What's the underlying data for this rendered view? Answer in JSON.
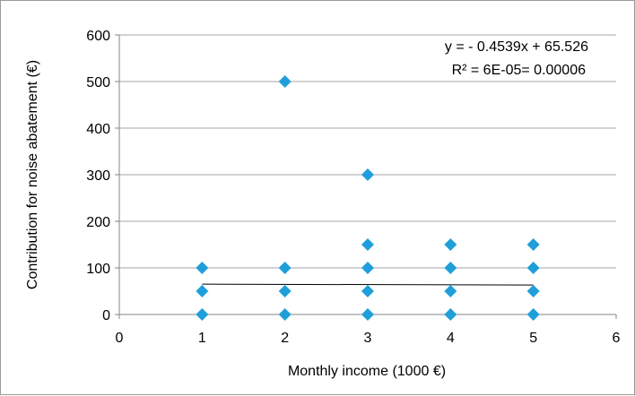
{
  "chart_data": {
    "type": "scatter",
    "title": "",
    "xlabel": "Monthly income (1000 €)",
    "ylabel": "Contribution for noise abatement (€)",
    "xlim": [
      0,
      6
    ],
    "ylim": [
      0,
      600
    ],
    "xticks": [
      "0",
      "1",
      "2",
      "3",
      "4",
      "5",
      "6"
    ],
    "yticks": [
      "0",
      "100",
      "200",
      "300",
      "400",
      "500",
      "600"
    ],
    "grid": {
      "horizontal": true,
      "vertical": false
    },
    "marker_color": "#1f9fd9",
    "trendline_color": "#000000",
    "points": [
      {
        "x": 1,
        "y": 0
      },
      {
        "x": 1,
        "y": 50
      },
      {
        "x": 1,
        "y": 100
      },
      {
        "x": 2,
        "y": 0
      },
      {
        "x": 2,
        "y": 50
      },
      {
        "x": 2,
        "y": 100
      },
      {
        "x": 2,
        "y": 500
      },
      {
        "x": 3,
        "y": 0
      },
      {
        "x": 3,
        "y": 50
      },
      {
        "x": 3,
        "y": 100
      },
      {
        "x": 3,
        "y": 150
      },
      {
        "x": 3,
        "y": 300
      },
      {
        "x": 4,
        "y": 0
      },
      {
        "x": 4,
        "y": 50
      },
      {
        "x": 4,
        "y": 100
      },
      {
        "x": 4,
        "y": 150
      },
      {
        "x": 5,
        "y": 0
      },
      {
        "x": 5,
        "y": 50
      },
      {
        "x": 5,
        "y": 100
      },
      {
        "x": 5,
        "y": 150
      }
    ],
    "trendline": {
      "slope": -0.4539,
      "intercept": 65.526,
      "x_range": [
        1,
        5
      ]
    },
    "annotations": {
      "equation": "y = - 0.4539x + 65.526",
      "r_squared": "R² = 6E-05= 0.00006"
    }
  }
}
